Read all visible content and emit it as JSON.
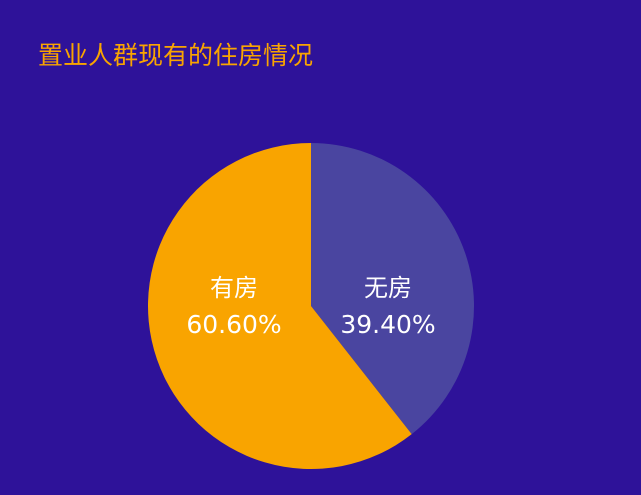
{
  "chart_data": {
    "type": "pie",
    "title": "置业人群现有的住房情况",
    "categories": [
      "无房",
      "有房"
    ],
    "values": [
      39.4,
      60.6
    ],
    "value_labels": [
      "39.40%",
      "60.60%"
    ],
    "colors": [
      "#4a45a0",
      "#f9a400"
    ]
  }
}
